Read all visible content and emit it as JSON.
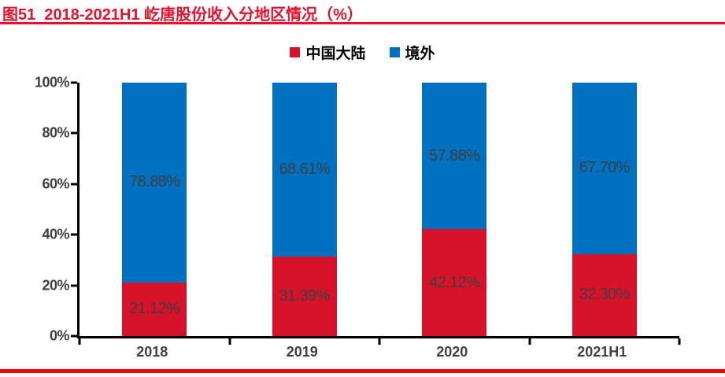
{
  "header": {
    "title": "图51  2018-2021H1 屹唐股份收入分地区情况（%）"
  },
  "colors": {
    "title_red": "#e8112d",
    "rule_top": "#e8112d",
    "rule_bottom": "#f40000",
    "axis_line": "#000000",
    "axis_text": "#404040",
    "value_label": "#3f3f3f",
    "mainland_red": "#d9122b",
    "overseas_blue": "#0070c0"
  },
  "chart_data": {
    "type": "bar",
    "stacked": true,
    "title": "图51  2018-2021H1 屹唐股份收入分地区情况（%）",
    "categories": [
      "2018",
      "2019",
      "2020",
      "2021H1"
    ],
    "series": [
      {
        "name": "中国大陆",
        "color": "#d9122b",
        "values": [
          21.12,
          31.39,
          42.12,
          32.3
        ]
      },
      {
        "name": "境外",
        "color": "#0070c0",
        "values": [
          78.88,
          68.61,
          57.88,
          67.7
        ]
      }
    ],
    "value_label_format": "0.00%",
    "ylim": [
      0,
      100
    ],
    "y_tick_labels": [
      "0%",
      "20%",
      "40%",
      "60%",
      "80%",
      "100%"
    ],
    "legend_position": "top",
    "grid": false
  }
}
